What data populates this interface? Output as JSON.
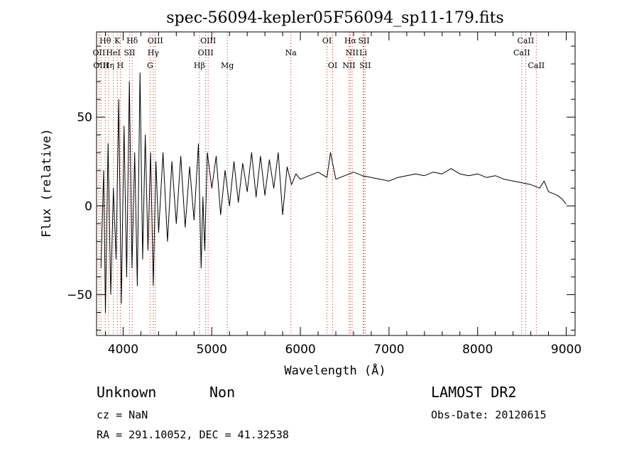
{
  "chart_data": {
    "type": "line",
    "title": "spec-56094-kepler05F56094_sp11-179.fits",
    "xlabel": "Wavelength (Å)",
    "ylabel": "Flux (relative)",
    "xlim": [
      3700,
      9100
    ],
    "ylim": [
      -73,
      98
    ],
    "xticks": [
      4000,
      5000,
      6000,
      7000,
      8000,
      9000
    ],
    "yticks": [
      -50,
      0,
      50
    ],
    "series": [
      {
        "color": "#000000",
        "x": [
          3750,
          3780,
          3800,
          3830,
          3860,
          3890,
          3920,
          3950,
          3980,
          4010,
          4040,
          4070,
          4100,
          4130,
          4160,
          4190,
          4220,
          4250,
          4280,
          4310,
          4340,
          4370,
          4400,
          4450,
          4500,
          4550,
          4600,
          4650,
          4700,
          4750,
          4800,
          4850,
          4880,
          4900,
          4920,
          4950,
          5000,
          5050,
          5100,
          5150,
          5200,
          5250,
          5300,
          5350,
          5400,
          5450,
          5500,
          5550,
          5600,
          5650,
          5700,
          5750,
          5800,
          5850,
          5900,
          5950,
          6000,
          6100,
          6200,
          6300,
          6340,
          6400,
          6500,
          6600,
          6700,
          6800,
          6900,
          7000,
          7100,
          7200,
          7300,
          7400,
          7500,
          7600,
          7700,
          7800,
          7900,
          8000,
          8100,
          8200,
          8300,
          8400,
          8500,
          8600,
          8700,
          8750,
          8800,
          8850,
          8900,
          8950,
          9000
        ],
        "y": [
          -35,
          20,
          -60,
          35,
          -50,
          10,
          -30,
          60,
          -55,
          45,
          -40,
          70,
          -35,
          30,
          -45,
          75,
          -30,
          40,
          -25,
          30,
          -45,
          25,
          -15,
          30,
          -20,
          25,
          -10,
          28,
          -12,
          22,
          -8,
          35,
          -35,
          5,
          -25,
          30,
          10,
          28,
          -5,
          20,
          0,
          25,
          2,
          24,
          8,
          30,
          5,
          28,
          6,
          26,
          10,
          30,
          -5,
          22,
          12,
          18,
          15,
          17,
          19,
          16,
          30,
          15,
          17,
          19,
          17,
          16,
          15,
          14,
          16,
          17,
          18,
          17,
          19,
          18,
          21,
          18,
          17,
          18,
          16,
          17,
          15,
          14,
          13,
          12,
          10,
          14,
          8,
          7,
          6,
          4,
          1
        ]
      }
    ],
    "line_markers": [
      {
        "label": "Hθ",
        "x": 3798,
        "row": 0
      },
      {
        "label": "OII",
        "x": 3727,
        "row": 1
      },
      {
        "label": "OIII",
        "x": 3750,
        "row": 2
      },
      {
        "label": "Hη",
        "x": 3835,
        "row": 2
      },
      {
        "label": "HeI",
        "x": 3889,
        "row": 1
      },
      {
        "label": "K",
        "x": 3934,
        "row": 0
      },
      {
        "label": "H",
        "x": 3968,
        "row": 2
      },
      {
        "label": "Hδ",
        "x": 4102,
        "row": 0
      },
      {
        "label": "SII",
        "x": 4072,
        "row": 1
      },
      {
        "label": "OIII",
        "x": 4363,
        "row": 0
      },
      {
        "label": "Hγ",
        "x": 4340,
        "row": 1
      },
      {
        "label": "G",
        "x": 4304,
        "row": 2
      },
      {
        "label": "OIII",
        "x": 4959,
        "row": 0
      },
      {
        "label": "OIII",
        "x": 4931,
        "row": 1
      },
      {
        "label": "Hβ",
        "x": 4861,
        "row": 2
      },
      {
        "label": "Mg",
        "x": 5175,
        "row": 2
      },
      {
        "label": "Na",
        "x": 5893,
        "row": 1
      },
      {
        "label": "OI",
        "x": 6300,
        "row": 0
      },
      {
        "label": "OI",
        "x": 6364,
        "row": 2
      },
      {
        "label": "Hα",
        "x": 6563,
        "row": 0
      },
      {
        "label": "SII",
        "x": 6716,
        "row": 0
      },
      {
        "label": "NII",
        "x": 6584,
        "row": 1
      },
      {
        "label": "Li",
        "x": 6708,
        "row": 1
      },
      {
        "label": "NII",
        "x": 6548,
        "row": 2
      },
      {
        "label": "SII",
        "x": 6731,
        "row": 2
      },
      {
        "label": "CaII",
        "x": 8542,
        "row": 0
      },
      {
        "label": "CaII",
        "x": 8498,
        "row": 1
      },
      {
        "label": "CaII",
        "x": 8662,
        "row": 2
      }
    ]
  },
  "info": {
    "class": "Unknown",
    "subclass": "Non",
    "survey": "LAMOST DR2",
    "cz": "cz = NaN",
    "obs_date": "Obs-Date: 20120615",
    "coords": "RA = 291.10052, DEC =  41.32538"
  }
}
